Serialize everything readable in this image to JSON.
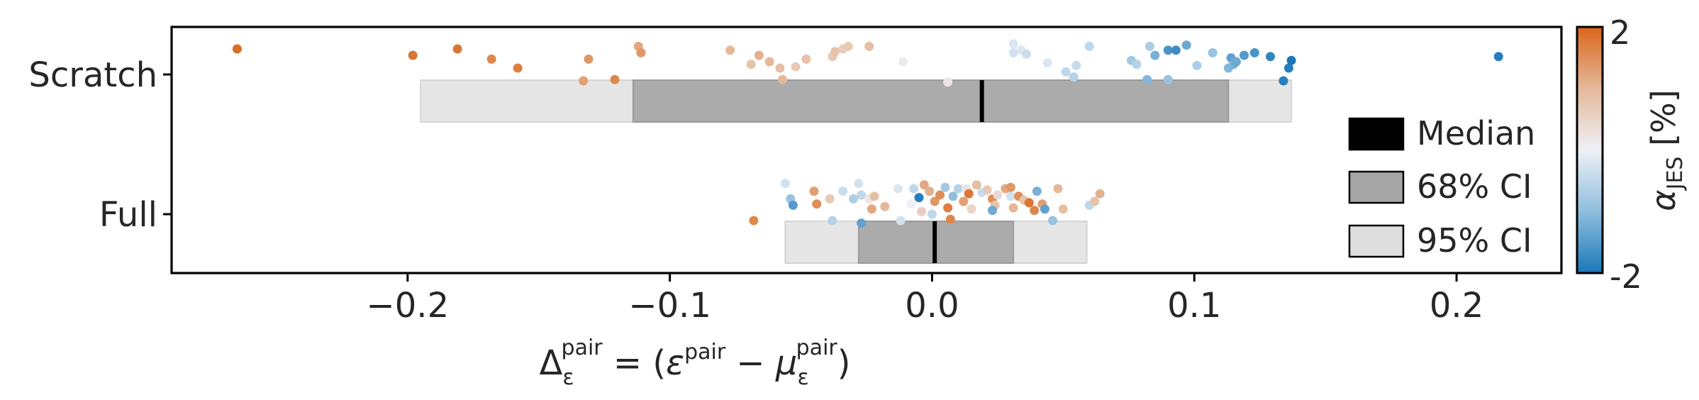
{
  "chart_data": {
    "type": "scatter",
    "description_axes": "horizontal strip/jitter plot with interval boxes",
    "categories": [
      "Scratch",
      "Full"
    ],
    "xlim": [
      -0.29,
      0.24
    ],
    "xticks": [
      -0.2,
      -0.1,
      0.0,
      0.1,
      0.2
    ],
    "xtick_labels": [
      "−0.2",
      "−0.1",
      "0.0",
      "0.1",
      "0.2"
    ],
    "xlabel": {
      "delta": "Δ",
      "delta_sub": "ε",
      "delta_sup": "pair",
      "eq_open": " = (",
      "eps": "ε",
      "eps_sup": "pair",
      "minus": " − ",
      "mu": "μ",
      "mu_sub": "ε",
      "mu_sup": "pair",
      "close": ")"
    },
    "ylabel": "",
    "grid": false,
    "intervals": [
      {
        "category": "Scratch",
        "median": 0.019,
        "ci68": [
          -0.114,
          0.113
        ],
        "ci95": [
          -0.195,
          0.137
        ]
      },
      {
        "category": "Full",
        "median": 0.001,
        "ci68": [
          -0.028,
          0.031
        ],
        "ci95": [
          -0.056,
          0.059
        ]
      }
    ],
    "legend": {
      "position": "right",
      "entries": [
        {
          "label": "Median",
          "color": "#000000"
        },
        {
          "label": "68% CI",
          "color": "#a6a6a6"
        },
        {
          "label": "95% CI",
          "color": "#dedede"
        }
      ]
    },
    "colorbar": {
      "label_main": "α",
      "label_sub": "JES",
      "label_unit": " [%]",
      "min": -2,
      "max": 2,
      "min_label": "-2",
      "max_label": "2",
      "colors": [
        "#1a78b8",
        "#8fbede",
        "#eef0f6",
        "#e5b89a",
        "#d9661a"
      ]
    },
    "points": [
      {
        "category": "Scratch",
        "x": -0.265,
        "jitter": 0.2,
        "alpha": 1.9
      },
      {
        "category": "Scratch",
        "x": -0.198,
        "jitter": 0.15,
        "alpha": 1.8
      },
      {
        "category": "Scratch",
        "x": -0.181,
        "jitter": 0.2,
        "alpha": 1.8
      },
      {
        "category": "Scratch",
        "x": -0.168,
        "jitter": 0.12,
        "alpha": 1.6
      },
      {
        "category": "Scratch",
        "x": -0.158,
        "jitter": 0.05,
        "alpha": 1.7
      },
      {
        "category": "Scratch",
        "x": -0.133,
        "jitter": -0.05,
        "alpha": 1.3
      },
      {
        "category": "Scratch",
        "x": -0.131,
        "jitter": 0.12,
        "alpha": 1.4
      },
      {
        "category": "Scratch",
        "x": -0.121,
        "jitter": -0.04,
        "alpha": 1.6
      },
      {
        "category": "Scratch",
        "x": -0.112,
        "jitter": 0.22,
        "alpha": 1.2
      },
      {
        "category": "Scratch",
        "x": -0.111,
        "jitter": 0.17,
        "alpha": 1.4
      },
      {
        "category": "Scratch",
        "x": -0.077,
        "jitter": 0.19,
        "alpha": 1.0
      },
      {
        "category": "Scratch",
        "x": -0.069,
        "jitter": 0.08,
        "alpha": 0.8
      },
      {
        "category": "Scratch",
        "x": -0.066,
        "jitter": 0.15,
        "alpha": 1.1
      },
      {
        "category": "Scratch",
        "x": -0.062,
        "jitter": 0.1,
        "alpha": 1.0
      },
      {
        "category": "Scratch",
        "x": -0.058,
        "jitter": 0.05,
        "alpha": 0.9
      },
      {
        "category": "Scratch",
        "x": -0.057,
        "jitter": -0.04,
        "alpha": 1.0
      },
      {
        "category": "Scratch",
        "x": -0.052,
        "jitter": 0.06,
        "alpha": 0.7
      },
      {
        "category": "Scratch",
        "x": -0.048,
        "jitter": 0.12,
        "alpha": 0.8
      },
      {
        "category": "Scratch",
        "x": -0.038,
        "jitter": 0.14,
        "alpha": 0.7
      },
      {
        "category": "Scratch",
        "x": -0.037,
        "jitter": 0.18,
        "alpha": 0.8
      },
      {
        "category": "Scratch",
        "x": -0.034,
        "jitter": 0.2,
        "alpha": 0.6
      },
      {
        "category": "Scratch",
        "x": -0.032,
        "jitter": 0.22,
        "alpha": 0.7
      },
      {
        "category": "Scratch",
        "x": -0.024,
        "jitter": 0.22,
        "alpha": 0.9
      },
      {
        "category": "Scratch",
        "x": -0.011,
        "jitter": 0.1,
        "alpha": 0.1
      },
      {
        "category": "Scratch",
        "x": 0.006,
        "jitter": -0.06,
        "alpha": 0.2
      },
      {
        "category": "Scratch",
        "x": 0.031,
        "jitter": 0.24,
        "alpha": -0.2
      },
      {
        "category": "Scratch",
        "x": 0.031,
        "jitter": 0.17,
        "alpha": -0.3
      },
      {
        "category": "Scratch",
        "x": 0.034,
        "jitter": 0.19,
        "alpha": -0.2
      },
      {
        "category": "Scratch",
        "x": 0.036,
        "jitter": 0.16,
        "alpha": -0.4
      },
      {
        "category": "Scratch",
        "x": 0.044,
        "jitter": 0.09,
        "alpha": -0.2
      },
      {
        "category": "Scratch",
        "x": 0.051,
        "jitter": 0.02,
        "alpha": -0.5
      },
      {
        "category": "Scratch",
        "x": 0.054,
        "jitter": -0.02,
        "alpha": -0.6
      },
      {
        "category": "Scratch",
        "x": 0.055,
        "jitter": 0.07,
        "alpha": -0.4
      },
      {
        "category": "Scratch",
        "x": 0.06,
        "jitter": 0.22,
        "alpha": -0.5
      },
      {
        "category": "Scratch",
        "x": 0.076,
        "jitter": 0.11,
        "alpha": -0.8
      },
      {
        "category": "Scratch",
        "x": 0.078,
        "jitter": 0.08,
        "alpha": -0.6
      },
      {
        "category": "Scratch",
        "x": 0.083,
        "jitter": 0.22,
        "alpha": -0.7
      },
      {
        "category": "Scratch",
        "x": 0.085,
        "jitter": 0.15,
        "alpha": -1.2
      },
      {
        "category": "Scratch",
        "x": 0.082,
        "jitter": -0.04,
        "alpha": -1.1
      },
      {
        "category": "Scratch",
        "x": 0.09,
        "jitter": -0.04,
        "alpha": -0.9
      },
      {
        "category": "Scratch",
        "x": 0.09,
        "jitter": 0.19,
        "alpha": -1.6
      },
      {
        "category": "Scratch",
        "x": 0.093,
        "jitter": 0.19,
        "alpha": -1.7
      },
      {
        "category": "Scratch",
        "x": 0.097,
        "jitter": 0.23,
        "alpha": -1.3
      },
      {
        "category": "Scratch",
        "x": 0.101,
        "jitter": 0.07,
        "alpha": -0.7
      },
      {
        "category": "Scratch",
        "x": 0.107,
        "jitter": 0.17,
        "alpha": -0.9
      },
      {
        "category": "Scratch",
        "x": 0.113,
        "jitter": 0.05,
        "alpha": -1.1
      },
      {
        "category": "Scratch",
        "x": 0.114,
        "jitter": 0.13,
        "alpha": -1.4
      },
      {
        "category": "Scratch",
        "x": 0.115,
        "jitter": 0.08,
        "alpha": -1.2
      },
      {
        "category": "Scratch",
        "x": 0.116,
        "jitter": 0.1,
        "alpha": -1.3
      },
      {
        "category": "Scratch",
        "x": 0.119,
        "jitter": 0.15,
        "alpha": -1.5
      },
      {
        "category": "Scratch",
        "x": 0.123,
        "jitter": 0.17,
        "alpha": -1.6
      },
      {
        "category": "Scratch",
        "x": 0.129,
        "jitter": 0.14,
        "alpha": -1.8
      },
      {
        "category": "Scratch",
        "x": 0.134,
        "jitter": -0.05,
        "alpha": -1.9
      },
      {
        "category": "Scratch",
        "x": 0.136,
        "jitter": 0.05,
        "alpha": -1.9
      },
      {
        "category": "Scratch",
        "x": 0.137,
        "jitter": 0.11,
        "alpha": -2.0
      },
      {
        "category": "Scratch",
        "x": 0.216,
        "jitter": 0.14,
        "alpha": -1.9
      },
      {
        "category": "Full",
        "x": -0.068,
        "jitter": -0.05,
        "alpha": 1.6
      },
      {
        "category": "Full",
        "x": -0.056,
        "jitter": 0.24,
        "alpha": -0.3
      },
      {
        "category": "Full",
        "x": -0.054,
        "jitter": 0.12,
        "alpha": -0.9
      },
      {
        "category": "Full",
        "x": -0.053,
        "jitter": 0.07,
        "alpha": -1.5
      },
      {
        "category": "Full",
        "x": -0.045,
        "jitter": 0.18,
        "alpha": 1.3
      },
      {
        "category": "Full",
        "x": -0.044,
        "jitter": 0.08,
        "alpha": 1.5
      },
      {
        "category": "Full",
        "x": -0.039,
        "jitter": 0.12,
        "alpha": 0.7
      },
      {
        "category": "Full",
        "x": -0.038,
        "jitter": -0.05,
        "alpha": -0.6
      },
      {
        "category": "Full",
        "x": -0.034,
        "jitter": 0.18,
        "alpha": -0.4
      },
      {
        "category": "Full",
        "x": -0.03,
        "jitter": 0.12,
        "alpha": -0.7
      },
      {
        "category": "Full",
        "x": -0.028,
        "jitter": 0.24,
        "alpha": -0.3
      },
      {
        "category": "Full",
        "x": -0.027,
        "jitter": 0.15,
        "alpha": -0.5
      },
      {
        "category": "Full",
        "x": -0.027,
        "jitter": -0.07,
        "alpha": -1.4
      },
      {
        "category": "Full",
        "x": -0.024,
        "jitter": 0.12,
        "alpha": 0.2
      },
      {
        "category": "Full",
        "x": -0.023,
        "jitter": 0.04,
        "alpha": 1.2
      },
      {
        "category": "Full",
        "x": -0.022,
        "jitter": 0.14,
        "alpha": 0.9
      },
      {
        "category": "Full",
        "x": -0.018,
        "jitter": 0.06,
        "alpha": 1.0
      },
      {
        "category": "Full",
        "x": -0.013,
        "jitter": 0.2,
        "alpha": -0.2
      },
      {
        "category": "Full",
        "x": -0.012,
        "jitter": -0.05,
        "alpha": -0.3
      },
      {
        "category": "Full",
        "x": -0.007,
        "jitter": 0.2,
        "alpha": -0.5
      },
      {
        "category": "Full",
        "x": -0.008,
        "jitter": 0.08,
        "alpha": 0.0
      },
      {
        "category": "Full",
        "x": -0.005,
        "jitter": 0.13,
        "alpha": -1.9
      },
      {
        "category": "Full",
        "x": -0.004,
        "jitter": 0.02,
        "alpha": 0.6
      },
      {
        "category": "Full",
        "x": -0.003,
        "jitter": 0.23,
        "alpha": 1.2
      },
      {
        "category": "Full",
        "x": -0.001,
        "jitter": 0.18,
        "alpha": 1.1
      },
      {
        "category": "Full",
        "x": 0.0,
        "jitter": 0.0,
        "alpha": -0.5
      },
      {
        "category": "Full",
        "x": 0.001,
        "jitter": 0.1,
        "alpha": 1.4
      },
      {
        "category": "Full",
        "x": 0.003,
        "jitter": 0.15,
        "alpha": 1.5
      },
      {
        "category": "Full",
        "x": 0.005,
        "jitter": 0.21,
        "alpha": -0.8
      },
      {
        "category": "Full",
        "x": 0.006,
        "jitter": 0.05,
        "alpha": 1.7
      },
      {
        "category": "Full",
        "x": 0.007,
        "jitter": -0.04,
        "alpha": 1.6
      },
      {
        "category": "Full",
        "x": 0.008,
        "jitter": 0.14,
        "alpha": -1.0
      },
      {
        "category": "Full",
        "x": 0.01,
        "jitter": 0.2,
        "alpha": -0.6
      },
      {
        "category": "Full",
        "x": 0.012,
        "jitter": 0.1,
        "alpha": 1.3
      },
      {
        "category": "Full",
        "x": 0.013,
        "jitter": 0.2,
        "alpha": 0.2
      },
      {
        "category": "Full",
        "x": 0.014,
        "jitter": 0.16,
        "alpha": 1.8
      },
      {
        "category": "Full",
        "x": 0.015,
        "jitter": 0.04,
        "alpha": 0.5
      },
      {
        "category": "Full",
        "x": 0.017,
        "jitter": 0.23,
        "alpha": 0.9
      },
      {
        "category": "Full",
        "x": 0.019,
        "jitter": 0.17,
        "alpha": -0.4
      },
      {
        "category": "Full",
        "x": 0.021,
        "jitter": 0.19,
        "alpha": 0.7
      },
      {
        "category": "Full",
        "x": 0.023,
        "jitter": 0.12,
        "alpha": 1.5
      },
      {
        "category": "Full",
        "x": 0.024,
        "jitter": 0.07,
        "alpha": 0.8
      },
      {
        "category": "Full",
        "x": 0.025,
        "jitter": 0.15,
        "alpha": 0.4
      },
      {
        "category": "Full",
        "x": 0.028,
        "jitter": 0.2,
        "alpha": 1.2
      },
      {
        "category": "Full",
        "x": 0.023,
        "jitter": 0.03,
        "alpha": -1.3
      },
      {
        "category": "Full",
        "x": 0.03,
        "jitter": 0.14,
        "alpha": -0.3
      },
      {
        "category": "Full",
        "x": 0.03,
        "jitter": 0.21,
        "alpha": 1.4
      },
      {
        "category": "Full",
        "x": 0.031,
        "jitter": 0.05,
        "alpha": 1.0
      },
      {
        "category": "Full",
        "x": 0.033,
        "jitter": 0.14,
        "alpha": 1.5
      },
      {
        "category": "Full",
        "x": 0.035,
        "jitter": 0.11,
        "alpha": 0.8
      },
      {
        "category": "Full",
        "x": 0.037,
        "jitter": 0.09,
        "alpha": 1.8
      },
      {
        "category": "Full",
        "x": 0.039,
        "jitter": 0.03,
        "alpha": 1.6
      },
      {
        "category": "Full",
        "x": 0.04,
        "jitter": 0.18,
        "alpha": -1.2
      },
      {
        "category": "Full",
        "x": 0.042,
        "jitter": 0.08,
        "alpha": 1.3
      },
      {
        "category": "Full",
        "x": 0.046,
        "jitter": -0.05,
        "alpha": -0.9
      },
      {
        "category": "Full",
        "x": 0.043,
        "jitter": 0.04,
        "alpha": -1.4
      },
      {
        "category": "Full",
        "x": 0.048,
        "jitter": 0.2,
        "alpha": 1.0
      },
      {
        "category": "Full",
        "x": 0.05,
        "jitter": 0.04,
        "alpha": 0.9
      },
      {
        "category": "Full",
        "x": 0.06,
        "jitter": 0.07,
        "alpha": -0.5
      },
      {
        "category": "Full",
        "x": 0.062,
        "jitter": 0.1,
        "alpha": 0.8
      },
      {
        "category": "Full",
        "x": 0.064,
        "jitter": 0.16,
        "alpha": 1.1
      }
    ]
  }
}
